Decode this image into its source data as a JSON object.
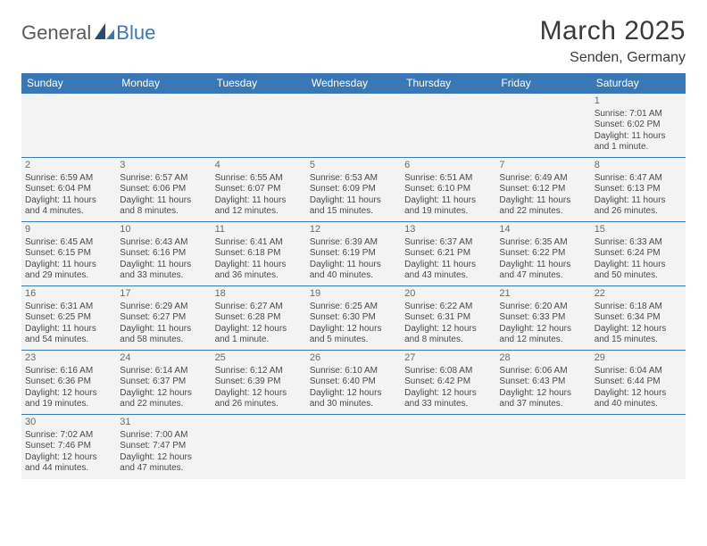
{
  "header": {
    "logo_part1": "General",
    "logo_part2": "Blue",
    "title": "March 2025",
    "location": "Senden, Germany"
  },
  "dayNames": [
    "Sunday",
    "Monday",
    "Tuesday",
    "Wednesday",
    "Thursday",
    "Friday",
    "Saturday"
  ],
  "colors": {
    "header_bg": "#3a78b5",
    "header_text": "#ffffff",
    "cell_bg": "#f3f3f3",
    "rule": "#3a78b5",
    "text": "#4a4a4a",
    "title": "#3a3a3a"
  },
  "typography": {
    "title_size_pt": 30,
    "location_size_pt": 16,
    "dayhead_size_pt": 12,
    "cell_size_pt": 10,
    "daynum_size_pt": 11
  },
  "layout": {
    "cols": 7,
    "rows": 6,
    "col_width_pct": 14.28
  },
  "weeks": [
    [
      {
        "empty": true
      },
      {
        "empty": true
      },
      {
        "empty": true
      },
      {
        "empty": true
      },
      {
        "empty": true
      },
      {
        "empty": true
      },
      {
        "d": "1",
        "sunrise": "Sunrise: 7:01 AM",
        "sunset": "Sunset: 6:02 PM",
        "daylight": "Daylight: 11 hours and 1 minute."
      }
    ],
    [
      {
        "d": "2",
        "sunrise": "Sunrise: 6:59 AM",
        "sunset": "Sunset: 6:04 PM",
        "daylight": "Daylight: 11 hours and 4 minutes."
      },
      {
        "d": "3",
        "sunrise": "Sunrise: 6:57 AM",
        "sunset": "Sunset: 6:06 PM",
        "daylight": "Daylight: 11 hours and 8 minutes."
      },
      {
        "d": "4",
        "sunrise": "Sunrise: 6:55 AM",
        "sunset": "Sunset: 6:07 PM",
        "daylight": "Daylight: 11 hours and 12 minutes."
      },
      {
        "d": "5",
        "sunrise": "Sunrise: 6:53 AM",
        "sunset": "Sunset: 6:09 PM",
        "daylight": "Daylight: 11 hours and 15 minutes."
      },
      {
        "d": "6",
        "sunrise": "Sunrise: 6:51 AM",
        "sunset": "Sunset: 6:10 PM",
        "daylight": "Daylight: 11 hours and 19 minutes."
      },
      {
        "d": "7",
        "sunrise": "Sunrise: 6:49 AM",
        "sunset": "Sunset: 6:12 PM",
        "daylight": "Daylight: 11 hours and 22 minutes."
      },
      {
        "d": "8",
        "sunrise": "Sunrise: 6:47 AM",
        "sunset": "Sunset: 6:13 PM",
        "daylight": "Daylight: 11 hours and 26 minutes."
      }
    ],
    [
      {
        "d": "9",
        "sunrise": "Sunrise: 6:45 AM",
        "sunset": "Sunset: 6:15 PM",
        "daylight": "Daylight: 11 hours and 29 minutes."
      },
      {
        "d": "10",
        "sunrise": "Sunrise: 6:43 AM",
        "sunset": "Sunset: 6:16 PM",
        "daylight": "Daylight: 11 hours and 33 minutes."
      },
      {
        "d": "11",
        "sunrise": "Sunrise: 6:41 AM",
        "sunset": "Sunset: 6:18 PM",
        "daylight": "Daylight: 11 hours and 36 minutes."
      },
      {
        "d": "12",
        "sunrise": "Sunrise: 6:39 AM",
        "sunset": "Sunset: 6:19 PM",
        "daylight": "Daylight: 11 hours and 40 minutes."
      },
      {
        "d": "13",
        "sunrise": "Sunrise: 6:37 AM",
        "sunset": "Sunset: 6:21 PM",
        "daylight": "Daylight: 11 hours and 43 minutes."
      },
      {
        "d": "14",
        "sunrise": "Sunrise: 6:35 AM",
        "sunset": "Sunset: 6:22 PM",
        "daylight": "Daylight: 11 hours and 47 minutes."
      },
      {
        "d": "15",
        "sunrise": "Sunrise: 6:33 AM",
        "sunset": "Sunset: 6:24 PM",
        "daylight": "Daylight: 11 hours and 50 minutes."
      }
    ],
    [
      {
        "d": "16",
        "sunrise": "Sunrise: 6:31 AM",
        "sunset": "Sunset: 6:25 PM",
        "daylight": "Daylight: 11 hours and 54 minutes."
      },
      {
        "d": "17",
        "sunrise": "Sunrise: 6:29 AM",
        "sunset": "Sunset: 6:27 PM",
        "daylight": "Daylight: 11 hours and 58 minutes."
      },
      {
        "d": "18",
        "sunrise": "Sunrise: 6:27 AM",
        "sunset": "Sunset: 6:28 PM",
        "daylight": "Daylight: 12 hours and 1 minute."
      },
      {
        "d": "19",
        "sunrise": "Sunrise: 6:25 AM",
        "sunset": "Sunset: 6:30 PM",
        "daylight": "Daylight: 12 hours and 5 minutes."
      },
      {
        "d": "20",
        "sunrise": "Sunrise: 6:22 AM",
        "sunset": "Sunset: 6:31 PM",
        "daylight": "Daylight: 12 hours and 8 minutes."
      },
      {
        "d": "21",
        "sunrise": "Sunrise: 6:20 AM",
        "sunset": "Sunset: 6:33 PM",
        "daylight": "Daylight: 12 hours and 12 minutes."
      },
      {
        "d": "22",
        "sunrise": "Sunrise: 6:18 AM",
        "sunset": "Sunset: 6:34 PM",
        "daylight": "Daylight: 12 hours and 15 minutes."
      }
    ],
    [
      {
        "d": "23",
        "sunrise": "Sunrise: 6:16 AM",
        "sunset": "Sunset: 6:36 PM",
        "daylight": "Daylight: 12 hours and 19 minutes."
      },
      {
        "d": "24",
        "sunrise": "Sunrise: 6:14 AM",
        "sunset": "Sunset: 6:37 PM",
        "daylight": "Daylight: 12 hours and 22 minutes."
      },
      {
        "d": "25",
        "sunrise": "Sunrise: 6:12 AM",
        "sunset": "Sunset: 6:39 PM",
        "daylight": "Daylight: 12 hours and 26 minutes."
      },
      {
        "d": "26",
        "sunrise": "Sunrise: 6:10 AM",
        "sunset": "Sunset: 6:40 PM",
        "daylight": "Daylight: 12 hours and 30 minutes."
      },
      {
        "d": "27",
        "sunrise": "Sunrise: 6:08 AM",
        "sunset": "Sunset: 6:42 PM",
        "daylight": "Daylight: 12 hours and 33 minutes."
      },
      {
        "d": "28",
        "sunrise": "Sunrise: 6:06 AM",
        "sunset": "Sunset: 6:43 PM",
        "daylight": "Daylight: 12 hours and 37 minutes."
      },
      {
        "d": "29",
        "sunrise": "Sunrise: 6:04 AM",
        "sunset": "Sunset: 6:44 PM",
        "daylight": "Daylight: 12 hours and 40 minutes."
      }
    ],
    [
      {
        "d": "30",
        "sunrise": "Sunrise: 7:02 AM",
        "sunset": "Sunset: 7:46 PM",
        "daylight": "Daylight: 12 hours and 44 minutes."
      },
      {
        "d": "31",
        "sunrise": "Sunrise: 7:00 AM",
        "sunset": "Sunset: 7:47 PM",
        "daylight": "Daylight: 12 hours and 47 minutes."
      },
      {
        "empty": true
      },
      {
        "empty": true
      },
      {
        "empty": true
      },
      {
        "empty": true
      },
      {
        "empty": true
      }
    ]
  ]
}
